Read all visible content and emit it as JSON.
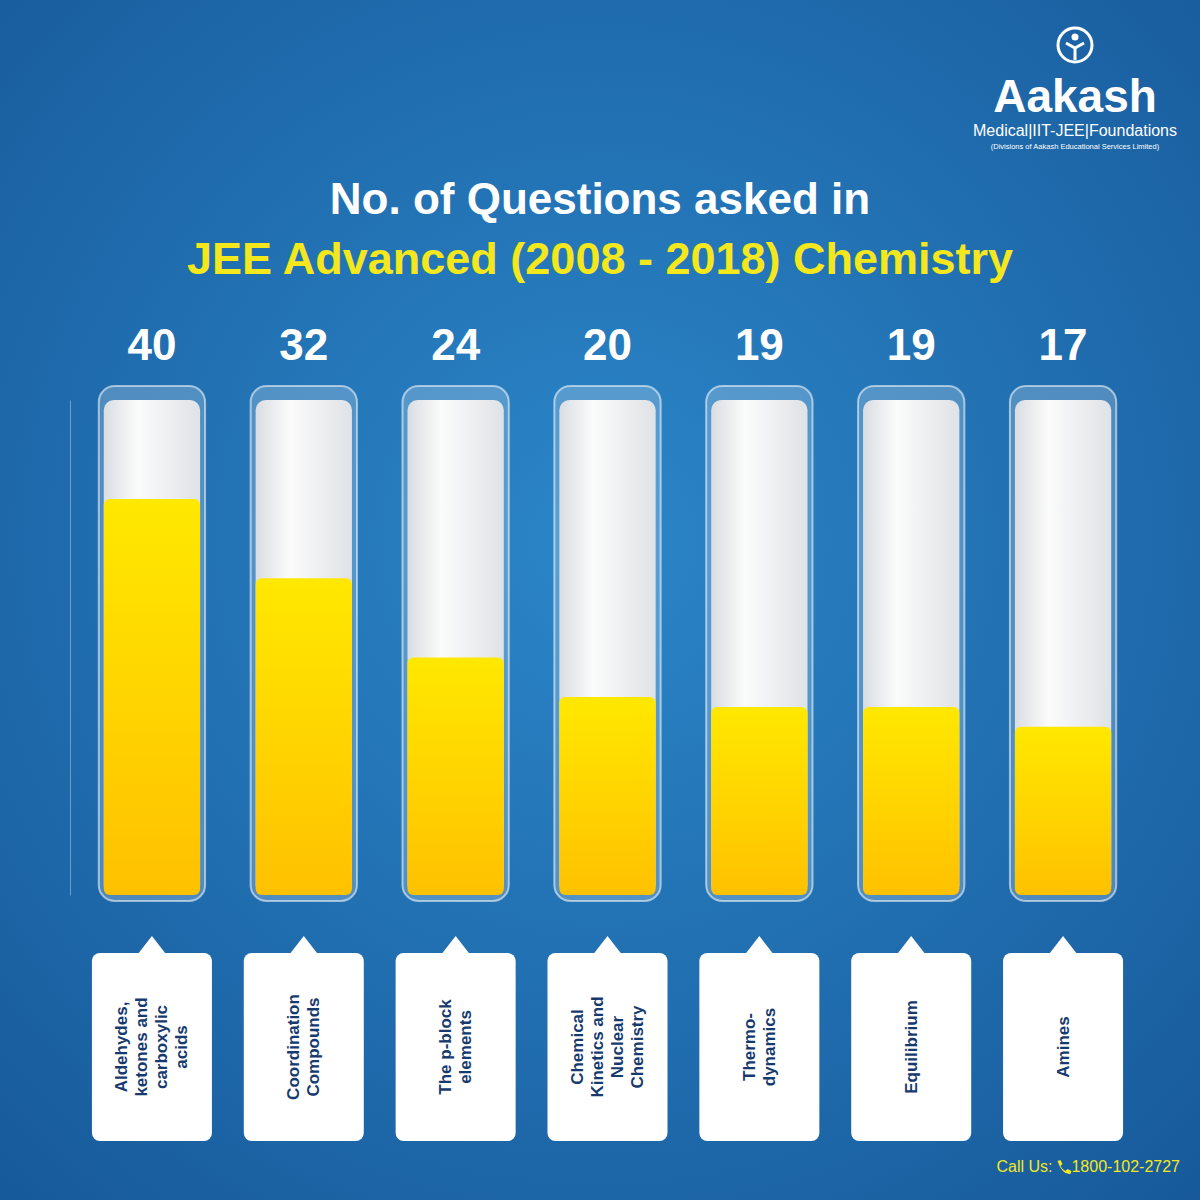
{
  "chart_data": {
    "type": "bar",
    "title": "No. of Questions asked in",
    "subtitle": "JEE Advanced (2008 - 2018) Chemistry",
    "categories": [
      "Aldehydes, ketones and carboxylic acids",
      "Coordination Compounds",
      "The p-block elements",
      "Chemical Kinetics and Nuclear Chemistry",
      "Thermo-dynamics",
      "Equilibrium",
      "Amines"
    ],
    "values": [
      40,
      32,
      24,
      20,
      19,
      19,
      17
    ],
    "color": "#ffe800",
    "ylim": [
      0,
      50
    ],
    "tick_labels": false,
    "data_labels": true
  },
  "branding": {
    "name": "Aakash",
    "divisions": "Medical|IIT-JEE|Foundations",
    "company": "(Divisions of Aakash Educational Services Limited)"
  },
  "contact": {
    "label": "Call Us:",
    "phone": "1800-102-2727"
  }
}
